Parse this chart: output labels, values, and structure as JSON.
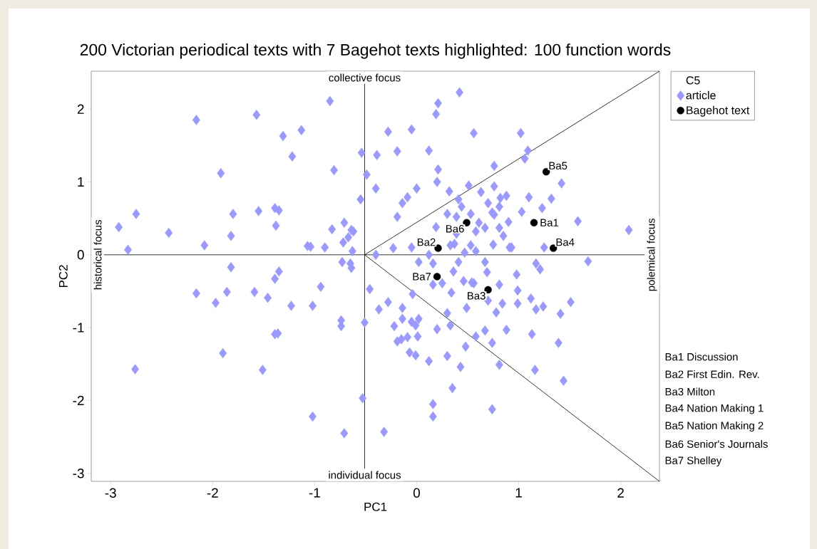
{
  "chart_data": {
    "type": "scatter",
    "title": "200 Victorian periodical texts with 7 Bagehot texts highlighted: 100 function words",
    "xlabel": "PC1",
    "ylabel": "PC2",
    "legend_title": "C5",
    "legend": "top right",
    "xlim": [
      -3.19,
      2.38
    ],
    "ylim": [
      -3.11,
      2.52
    ],
    "xticks": [
      -3,
      -2,
      -1,
      0,
      1,
      2
    ],
    "yticks": [
      -3,
      -2,
      -1,
      0,
      1,
      2
    ],
    "series": [
      {
        "name": "article",
        "color": "#9999ff",
        "marker": "diamond",
        "x": [
          -2.92,
          -2.83,
          -2.75,
          -2.43,
          -2.08,
          -2.16,
          -1.92,
          -1.82,
          -1.8,
          -1.57,
          -1.55,
          -1.39,
          -1.35,
          -1.38,
          -1.31,
          -1.22,
          -1.13,
          -1.07,
          -1.04,
          -0.9,
          -0.85,
          -0.83,
          -0.81,
          -0.72,
          -0.71,
          -0.64,
          -0.67,
          -0.63,
          -0.65,
          -0.62,
          -2.16,
          -1.97,
          -1.86,
          -1.82,
          -1.59,
          -1.46,
          -1.39,
          -1.35,
          -1.36,
          -1.39,
          -1.23,
          -1.9,
          -1.51,
          -2.76,
          -1.02,
          -0.94,
          -1.02,
          -0.74,
          -0.74,
          -0.71,
          -0.53,
          -0.32,
          -0.51,
          -0.46,
          -0.37,
          -0.28,
          -0.22,
          -0.14,
          -0.14,
          -0.19,
          -0.15,
          -0.09,
          -0.05,
          -0.01,
          0.02,
          0.01,
          -0.07,
          -0.01,
          0.12,
          0.2,
          0.16,
          -0.04,
          0.34,
          0.3,
          0.33,
          0.3,
          0.43,
          0.35,
          0.16,
          0.16,
          0.48,
          0.49,
          0.54,
          0.56,
          0.7,
          0.84,
          0.78,
          0.99,
          0.99,
          1.12,
          1.17,
          1.24,
          1.41,
          1.51,
          0.67,
          0.58,
          0.74,
          0.88,
          1.13,
          1.39,
          0.81,
          1.16,
          1.44,
          0.74,
          -0.73,
          -0.64,
          -0.4,
          -0.23,
          -0.05,
          0.02,
          0.12,
          0.16,
          0.37,
          0.41,
          0.19,
          -0.19,
          -0.14,
          -0.09,
          0.0,
          -0.55,
          -0.4,
          -0.49,
          -0.54,
          -0.39,
          -0.19,
          0.12,
          -0.28,
          -0.05,
          0.21,
          0.19,
          0.42,
          0.21,
          0.2,
          0.32,
          0.3,
          0.39,
          0.47,
          0.41,
          0.51,
          0.56,
          1.02,
          1.09,
          1.06,
          0.76,
          1.42,
          0.76,
          0.88,
          0.82,
          1.1,
          1.32,
          0.63,
          1.23,
          1.03,
          0.76,
          0.9,
          0.61,
          1.58,
          2.08,
          0.85,
          0.75,
          0.93,
          1.25,
          0.58,
          1.17,
          1.21,
          1.68,
          0.69,
          0.44,
          0.53,
          0.58,
          0.67,
          0.74,
          0.81,
          0.81,
          0.7,
          0.39,
          0.33,
          0.53,
          0.67,
          0.46,
          0.36,
          0.25,
          0.91,
          0.98,
          0.81
        ],
        "values": [
          0.38,
          0.07,
          0.56,
          0.3,
          0.13,
          1.85,
          1.12,
          0.26,
          0.56,
          1.92,
          0.6,
          0.64,
          0.61,
          0.4,
          1.63,
          1.35,
          1.71,
          0.12,
          0.11,
          0.1,
          2.11,
          0.35,
          1.16,
          0.17,
          0.44,
          0.34,
          0.24,
          0.05,
          -0.12,
          0.32,
          -0.53,
          -0.66,
          -0.51,
          -0.17,
          -0.51,
          -0.59,
          -0.33,
          -0.23,
          -1.08,
          -1.09,
          -0.7,
          -1.35,
          -1.58,
          -1.57,
          -0.7,
          -0.44,
          -2.22,
          -0.9,
          -0.98,
          -2.45,
          -1.97,
          -2.43,
          -0.93,
          -0.47,
          -0.75,
          -0.65,
          -0.98,
          -0.73,
          -0.88,
          -1.19,
          -1.16,
          -1.13,
          -0.92,
          -0.97,
          -0.88,
          -1.12,
          -1.34,
          -1.38,
          -1.46,
          -1.02,
          -0.41,
          -0.54,
          -0.52,
          -0.8,
          -0.97,
          -1.39,
          -1.54,
          -1.83,
          -2.05,
          -2.22,
          -1.26,
          -0.73,
          -0.38,
          -0.39,
          -0.63,
          -0.67,
          -0.79,
          -0.49,
          -0.67,
          -0.6,
          -0.75,
          -0.71,
          -0.81,
          -0.65,
          -1.04,
          -1.12,
          -1.21,
          -1.03,
          -1.09,
          -1.21,
          -1.51,
          -1.58,
          -1.73,
          -2.12,
          -0.1,
          -0.18,
          0.0,
          0.09,
          0.1,
          -0.1,
          0.0,
          -0.12,
          0.15,
          -0.1,
          0.38,
          0.52,
          0.71,
          0.79,
          0.91,
          0.76,
          0.91,
          1.1,
          1.4,
          1.37,
          1.42,
          1.43,
          1.69,
          1.72,
          2.08,
          1.93,
          2.23,
          1.17,
          1.0,
          0.87,
          0.56,
          0.29,
          0.03,
          0.76,
          0.95,
          1.67,
          1.67,
          1.43,
          1.32,
          1.22,
          0.98,
          0.94,
          0.81,
          0.78,
          0.79,
          0.77,
          0.86,
          0.64,
          0.59,
          0.55,
          0.45,
          0.44,
          0.46,
          0.34,
          0.26,
          0.14,
          0.1,
          0.1,
          0.05,
          -0.12,
          -0.2,
          -0.09,
          -0.24,
          0.66,
          0.56,
          0.32,
          0.37,
          0.58,
          0.66,
          0.37,
          0.71,
          0.52,
          0.13,
          0.13,
          -0.1,
          -0.36,
          -0.23,
          -0.39,
          0.1,
          -0.27,
          -0.41
        ]
      },
      {
        "name": "Bagehot text",
        "color": "#000000",
        "marker": "circle",
        "x": [
          1.15,
          0.21,
          0.7,
          1.34,
          1.27,
          0.49,
          0.2
        ],
        "values": [
          0.44,
          0.09,
          -0.48,
          0.09,
          1.14,
          0.44,
          -0.3
        ]
      },
      {
        "type": "line",
        "color": "#000000",
        "marker": "none",
        "x": [
          -0.51,
          2.38
        ],
        "values": [
          0,
          2.52
        ]
      },
      {
        "type": "line",
        "color": "#000000",
        "marker": "none",
        "x": [
          -0.51,
          2.38
        ],
        "values": [
          0,
          -3.11
        ]
      }
    ],
    "ref_lines": [
      {
        "axis": "x",
        "value": -0.51,
        "color": "#000000"
      },
      {
        "axis": "y",
        "value": 0,
        "color": "#000000"
      }
    ],
    "annotations": [
      {
        "text": "collective focus",
        "x": -0.51,
        "y": 2.52
      },
      {
        "text": "individual focus",
        "x": -0.51,
        "y": -3.11
      },
      {
        "text": "historical focus",
        "x": -3.19,
        "y": 0
      },
      {
        "text": "polemical focus",
        "x": 2.38,
        "y": 0
      },
      {
        "text": "Ba1",
        "x": 1.15,
        "y": 0.44
      },
      {
        "text": "Ba2",
        "x": 0.21,
        "y": 0.09
      },
      {
        "text": "Ba3",
        "x": 0.7,
        "y": -0.48
      },
      {
        "text": "Ba4",
        "x": 1.34,
        "y": 0.09
      },
      {
        "text": "Ba5",
        "x": 1.27,
        "y": 1.14
      },
      {
        "text": "Ba6",
        "x": 0.49,
        "y": 0.44
      },
      {
        "text": "Ba7",
        "x": 0.2,
        "y": -0.3
      },
      "Ba1 Discussion",
      "Ba2 First Edin. Rev.",
      "Ba3 Milton",
      "Ba4 Nation Making 1",
      "Ba5 Nation Making 2",
      "Ba6 Senior's Journals",
      "Ba7 Shelley"
    ]
  }
}
